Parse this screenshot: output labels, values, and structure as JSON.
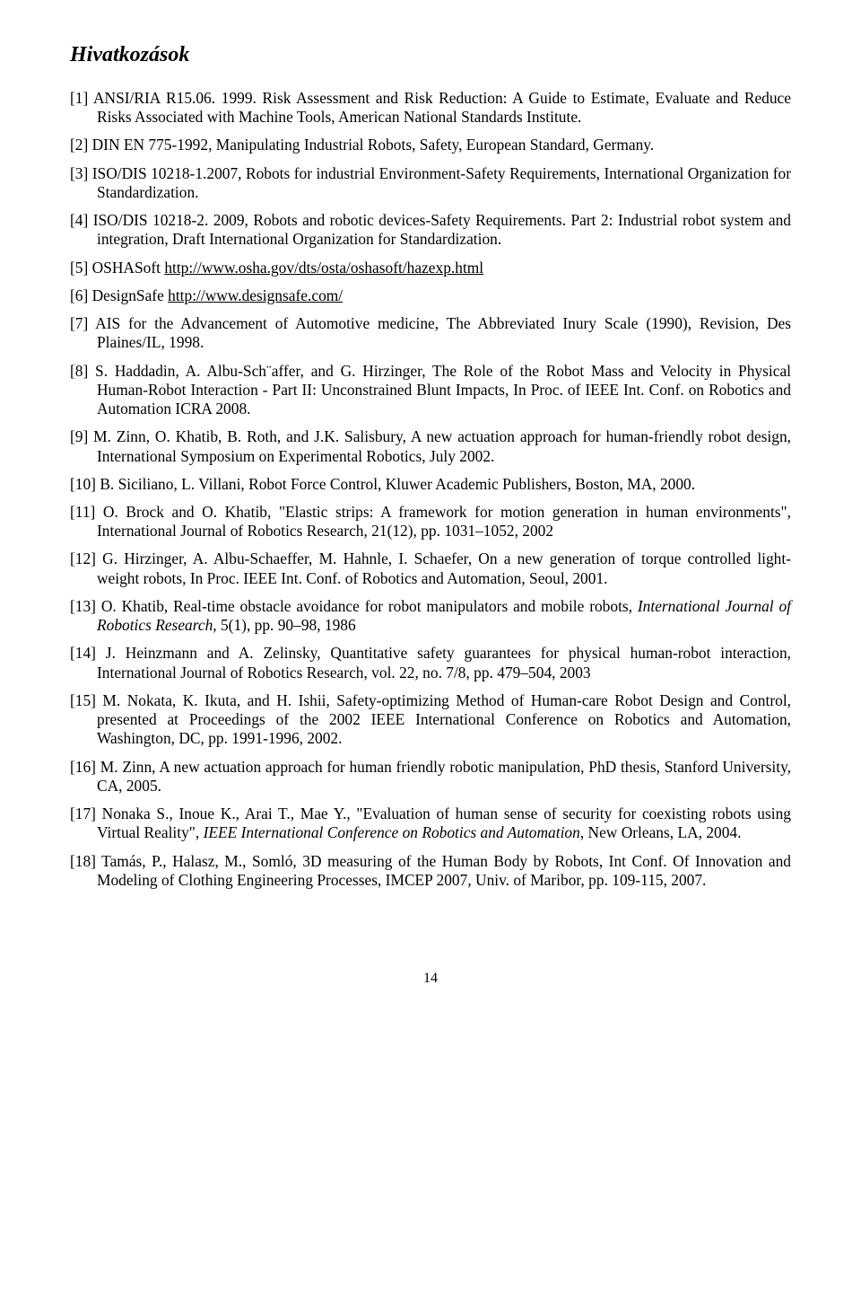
{
  "heading": "Hivatkozások",
  "refs": [
    {
      "text": "[1] ANSI/RIA R15.06. 1999. Risk Assessment and Risk Reduction: A Guide to Estimate, Evaluate and Reduce Risks Associated with Machine Tools, American National Standards Institute."
    },
    {
      "text": "[2] DIN EN 775-1992, Manipulating Industrial Robots, Safety, European Standard, Germany."
    },
    {
      "text": "[3] ISO/DIS 10218-1.2007, Robots for industrial Environment-Safety Requirements, International Organization for Standardization."
    },
    {
      "text": "[4] ISO/DIS 10218-2. 2009, Robots and robotic devices-Safety Requirements. Part 2: Industrial robot system and integration, Draft International Organization for Standardization."
    },
    {
      "prefix": "[5] OSHASoft ",
      "link_text": "http://www.osha.gov/dts/osta/oshasoft/hazexp.html"
    },
    {
      "prefix": "[6] DesignSafe ",
      "link_text": "http://www.designsafe.com/"
    },
    {
      "text": "[7] AIS for the Advancement of Automotive medicine, The Abbreviated Inury Scale (1990), Revision, Des Plaines/IL, 1998."
    },
    {
      "text": "[8] S. Haddadin, A. Albu-Sch¨affer, and G. Hirzinger, The Role of the Robot Mass and Velocity in Physical Human-Robot Interaction - Part II: Unconstrained Blunt Impacts, In Proc. of IEEE Int. Conf. on Robotics and Automation ICRA 2008."
    },
    {
      "text": "[9] M. Zinn, O. Khatib, B. Roth, and J.K. Salisbury, A new actuation approach for human-friendly robot design, International Symposium on Experimental Robotics, July 2002."
    },
    {
      "text": "[10]  B. Siciliano, L. Villani, Robot Force Control, Kluwer Academic Publishers, Boston, MA, 2000."
    },
    {
      "text": "[11] O. Brock and O. Khatib, \"Elastic strips: A framework for motion generation in human environments\", International Journal of Robotics Research, 21(12), pp. 1031–1052, 2002"
    },
    {
      "text": "[12] G. Hirzinger, A. Albu-Schaeffer, M. Hahnle, I. Schaefer, On a new generation of torque controlled light-weight robots, In Proc. IEEE Int. Conf. of Robotics and Automation, Seoul, 2001."
    },
    {
      "pre": "[13] O. Khatib, Real-time obstacle avoidance for robot manipulators and mobile robots, ",
      "italic": "International Journal of Robotics Research",
      "post": ", 5(1), pp. 90–98, 1986"
    },
    {
      "text": "[14] J. Heinzmann and A. Zelinsky, Quantitative safety guarantees for physical human-robot interaction, International Journal of Robotics Research, vol. 22, no. 7/8, pp. 479–504, 2003"
    },
    {
      "text": "[15] M. Nokata, K. Ikuta, and H. Ishii, Safety-optimizing Method of Human-care Robot Design and Control, presented at Proceedings of the 2002 IEEE International Conference on Robotics and Automation, Washington, DC, pp. 1991-1996, 2002."
    },
    {
      "text": "[16] M. Zinn, A new actuation approach for human friendly robotic manipulation, PhD thesis, Stanford University, CA, 2005."
    },
    {
      "pre": "[17] Nonaka S., Inoue K., Arai T., Mae Y., \"Evaluation of human sense of security for coexisting robots using Virtual Reality\", ",
      "italic": "IEEE International Conference on Robotics and Automation",
      "post": ", New Orleans, LA, 2004."
    },
    {
      "text": "[18] Tamás, P., Halasz, M., Somló, 3D measuring of the Human Body by Robots, Int Conf. Of Innovation and Modeling of Clothing Engineering Processes, IMCEP 2007, Univ. of  Maribor, pp. 109-115, 2007."
    }
  ],
  "page_number": "14"
}
